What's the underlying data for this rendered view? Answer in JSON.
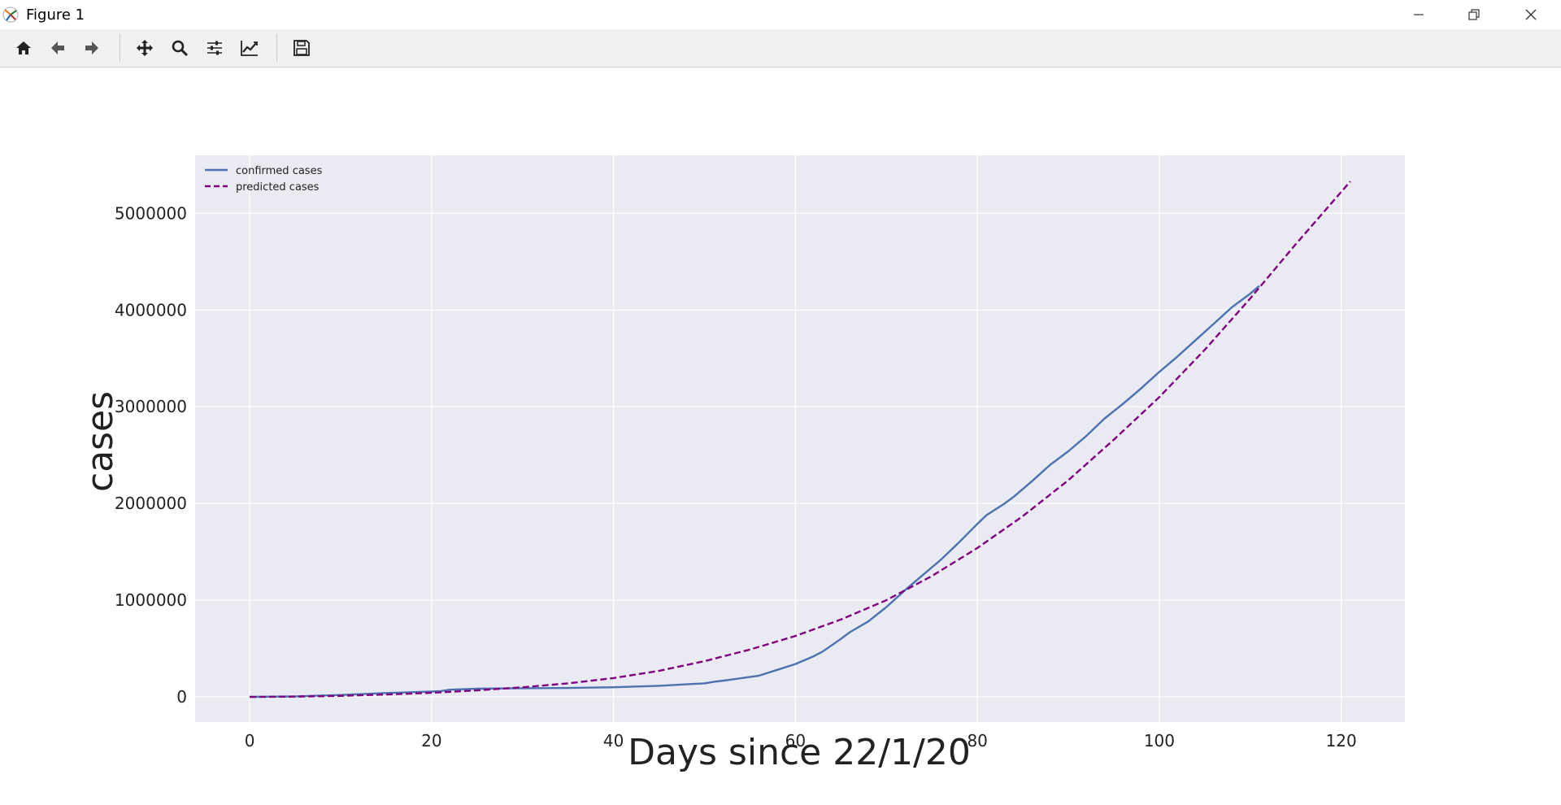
{
  "window": {
    "title": "Figure 1",
    "controls": [
      "minimize-icon",
      "restore-icon",
      "close-icon"
    ]
  },
  "toolbar": {
    "buttons": [
      {
        "name": "home-icon"
      },
      {
        "name": "back-arrow-icon"
      },
      {
        "name": "forward-arrow-icon"
      },
      {
        "name": "pan-icon"
      },
      {
        "name": "zoom-icon"
      },
      {
        "name": "configure-subplots-icon"
      },
      {
        "name": "edit-axis-icon"
      },
      {
        "name": "save-icon"
      }
    ]
  },
  "colors": {
    "confirmed": "#4c72b0",
    "predicted": "#800080",
    "plot_bg": "#eaeaf2",
    "grid": "#ffffff"
  },
  "chart_data": {
    "type": "line",
    "title": "",
    "xlabel": "Days since 22/1/20",
    "ylabel": "cases",
    "xlim": [
      -6,
      127
    ],
    "ylim": [
      -260000,
      5600000
    ],
    "xticks": [
      0,
      20,
      40,
      60,
      80,
      100,
      120
    ],
    "xtick_labels": [
      "0",
      "20",
      "40",
      "60",
      "80",
      "100",
      "120"
    ],
    "yticks": [
      0,
      1000000,
      2000000,
      3000000,
      4000000,
      5000000
    ],
    "ytick_labels": [
      "0",
      "1000000",
      "2000000",
      "3000000",
      "4000000",
      "5000000"
    ],
    "grid": true,
    "legend_position": "top-left",
    "series": [
      {
        "name": "confirmed cases",
        "style": "solid",
        "x": [
          0,
          5,
          10,
          15,
          20,
          21,
          22,
          25,
          30,
          35,
          40,
          45,
          48,
          50,
          51,
          53,
          56,
          58,
          60,
          62,
          63,
          65,
          66,
          68,
          70,
          72,
          74,
          76,
          78,
          80,
          81,
          83,
          84,
          86,
          88,
          90,
          92,
          94,
          96,
          98,
          100,
          102,
          104,
          106,
          108,
          110,
          111
        ],
        "y": [
          600,
          6000,
          20000,
          40000,
          55000,
          60000,
          75000,
          85000,
          90000,
          92000,
          100000,
          115000,
          130000,
          140000,
          155000,
          180000,
          220000,
          280000,
          340000,
          420000,
          470000,
          600000,
          670000,
          780000,
          930000,
          1100000,
          1260000,
          1420000,
          1600000,
          1790000,
          1880000,
          2000000,
          2070000,
          2230000,
          2400000,
          2540000,
          2700000,
          2880000,
          3030000,
          3190000,
          3360000,
          3520000,
          3690000,
          3860000,
          4030000,
          4170000,
          4250000
        ]
      },
      {
        "name": "predicted cases",
        "style": "dashed",
        "x": [
          0,
          5,
          10,
          15,
          20,
          25,
          30,
          35,
          40,
          45,
          50,
          55,
          60,
          65,
          70,
          75,
          80,
          85,
          90,
          95,
          100,
          105,
          110,
          115,
          121
        ],
        "y": [
          0,
          3000,
          11000,
          25000,
          43000,
          68000,
          100000,
          140000,
          195000,
          270000,
          370000,
          490000,
          630000,
          800000,
          1000000,
          1250000,
          1540000,
          1870000,
          2240000,
          2660000,
          3100000,
          3590000,
          4120000,
          4680000,
          5330000
        ]
      }
    ]
  }
}
